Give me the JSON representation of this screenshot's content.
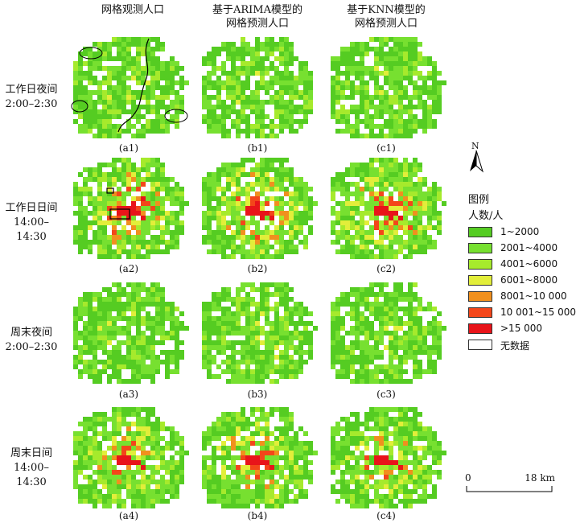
{
  "columns": [
    {
      "title_line1": "网格观测人口",
      "title_line2": ""
    },
    {
      "title_line1": "基于ARIMA模型的",
      "title_line2": "网格预测人口"
    },
    {
      "title_line1": "基于KNN模型的",
      "title_line2": "网格预测人口"
    }
  ],
  "rows": [
    {
      "label_line1": "工作日夜间",
      "label_line2": "2:00–2:30",
      "intensity": 0.25
    },
    {
      "label_line1": "工作日日间",
      "label_line2": "14:00–14:30",
      "intensity": 0.9
    },
    {
      "label_line1": "周末夜间",
      "label_line2": "2:00–2:30",
      "intensity": 0.3
    },
    {
      "label_line1": "周末日间",
      "label_line2": "14:00–14:30",
      "intensity": 0.7
    }
  ],
  "captions": [
    [
      "(a1)",
      "(b1)",
      "(c1)"
    ],
    [
      "(a2)",
      "(b2)",
      "(c2)"
    ],
    [
      "(a3)",
      "(b3)",
      "(c3)"
    ],
    [
      "(a4)",
      "(b4)",
      "(c4)"
    ]
  ],
  "north_label": "N",
  "legend": {
    "title": "图例",
    "subtitle": "人数/人",
    "items": [
      {
        "label": "1~2000",
        "color": "#55cc22"
      },
      {
        "label": "2001~4000",
        "color": "#77e030"
      },
      {
        "label": "4001~6000",
        "color": "#a6ea2c"
      },
      {
        "label": "6001~8000",
        "color": "#e2ee3a"
      },
      {
        "label": "8001~10 000",
        "color": "#f0901e"
      },
      {
        "label": "10 001~15 000",
        "color": "#f3461a"
      },
      {
        "label": ">15 000",
        "color": "#e8141a"
      },
      {
        "label": "无数据",
        "color": "#ffffff"
      }
    ]
  },
  "scale_bar": {
    "left_label": "0",
    "right_label": "18 km"
  }
}
